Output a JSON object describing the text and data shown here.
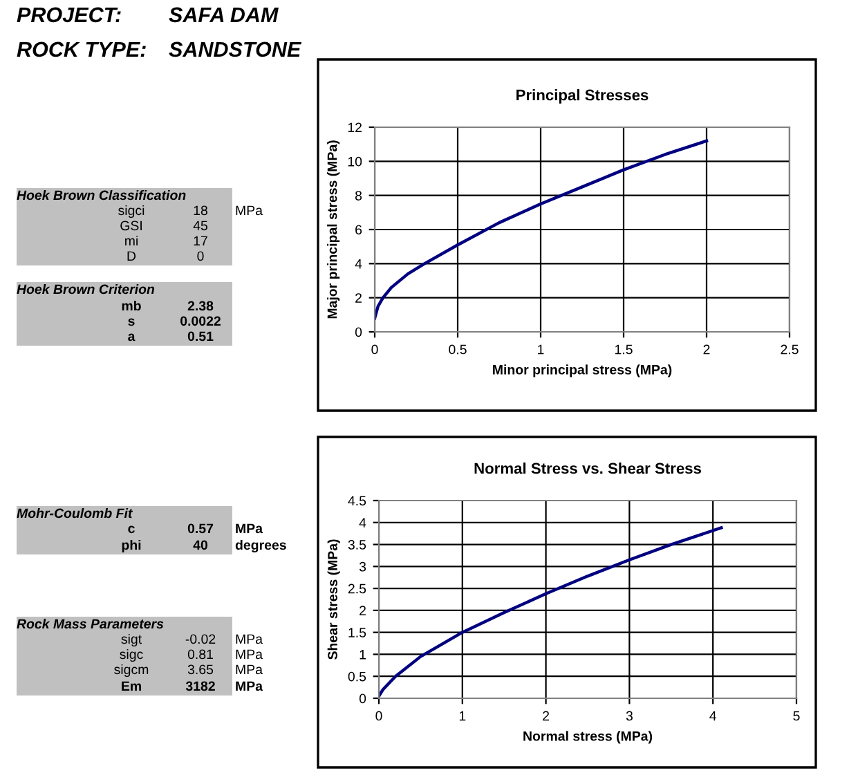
{
  "chart_data": [
    {
      "type": "other",
      "annotations": [
        "PROJECT:\tSAFA DAM",
        "ROCK TYPE:\tSANDSTONE",
        "Hoek Brown Classification",
        "sigci\t18\tMPa",
        "GSI\t45",
        "mi\t17",
        "D\t0",
        "Hoek Brown Criterion",
        "mb\t2.38",
        "s\t0.0022",
        "a\t0.51",
        "Mohr-Coulomb Fit",
        "c\t0.57\tMPa",
        "phi\t40\tdegrees",
        "Rock Mass Parameters",
        "sigt\t-0.02\tMPa",
        "sigc\t0.81\tMPa",
        "sigcm\t3.65\tMPa",
        "Em\t3182\tMPa"
      ]
    },
    {
      "type": "line",
      "title": "Principal Stresses",
      "xlabel": "Minor principal stress (MPa)",
      "ylabel": "Major principal stress (MPa)",
      "xlim": [
        0,
        2.5
      ],
      "xticks": [
        0,
        0.5,
        1,
        1.5,
        2,
        2.5
      ],
      "ylim": [
        0,
        12
      ],
      "yticks": [
        0,
        2,
        4,
        6,
        8,
        10,
        12
      ],
      "grid": true,
      "series": [
        {
          "color": "#000080",
          "x": [
            0,
            0.02,
            0.05,
            0.1,
            0.2,
            0.3,
            0.5,
            0.75,
            1,
            1.25,
            1.5,
            1.75,
            2
          ],
          "values": [
            0.8,
            1.5,
            2.0,
            2.6,
            3.4,
            4.0,
            5.1,
            6.4,
            7.5,
            8.5,
            9.5,
            10.4,
            11.2
          ]
        }
      ]
    },
    {
      "type": "line",
      "title": "Normal Stress vs. Shear Stress",
      "xlabel": "Normal stress (MPa)",
      "ylabel": "Shear stress (MPa)",
      "xlim": [
        0,
        5
      ],
      "xticks": [
        0,
        1,
        2,
        3,
        4,
        5
      ],
      "ylim": [
        0,
        4.5
      ],
      "yticks": [
        0,
        0.5,
        1,
        1.5,
        2,
        2.5,
        3,
        3.5,
        4,
        4.5
      ],
      "grid": true,
      "series": [
        {
          "color": "#000080",
          "x": [
            0,
            0.05,
            0.2,
            0.5,
            1,
            1.5,
            2,
            2.5,
            3,
            3.5,
            4.1
          ],
          "values": [
            0.05,
            0.2,
            0.5,
            0.95,
            1.5,
            1.95,
            2.38,
            2.78,
            3.15,
            3.5,
            3.88
          ]
        }
      ]
    }
  ]
}
